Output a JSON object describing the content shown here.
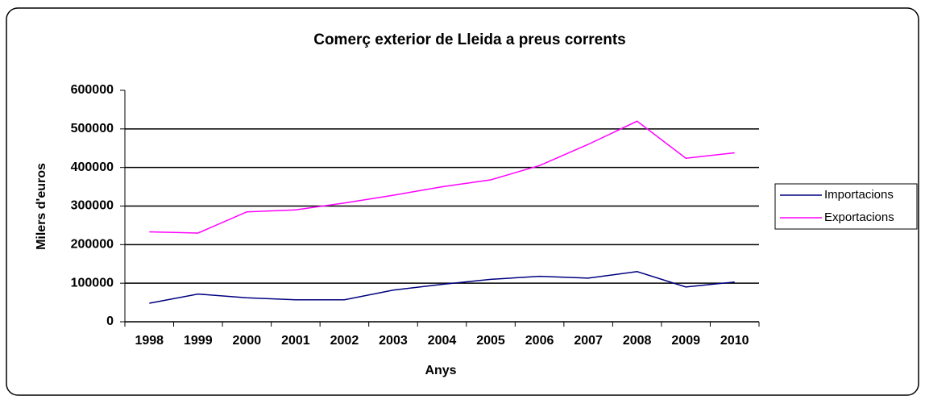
{
  "chart_data": {
    "type": "line",
    "title": "Comerç exterior de Lleida a preus corrents",
    "x_label": "Anys",
    "y_label": "Milers d'euros",
    "categories": [
      "1998",
      "1999",
      "2000",
      "2001",
      "2002",
      "2003",
      "2004",
      "2005",
      "2006",
      "2007",
      "2008",
      "2009",
      "2010"
    ],
    "series": [
      {
        "name": "Importacions",
        "color": "#000080",
        "values": [
          48000,
          72000,
          62000,
          57000,
          57000,
          82000,
          97000,
          110000,
          118000,
          113000,
          130000,
          90000,
          103000
        ]
      },
      {
        "name": "Exportacions",
        "color": "#ff00ff",
        "values": [
          233000,
          230000,
          285000,
          290000,
          308000,
          328000,
          350000,
          368000,
          405000,
          460000,
          520000,
          424000,
          438000
        ]
      }
    ],
    "ylim": [
      0,
      600000
    ],
    "yticks": [
      0,
      100000,
      200000,
      300000,
      400000,
      500000,
      600000
    ],
    "grid": true,
    "legend": "right"
  }
}
